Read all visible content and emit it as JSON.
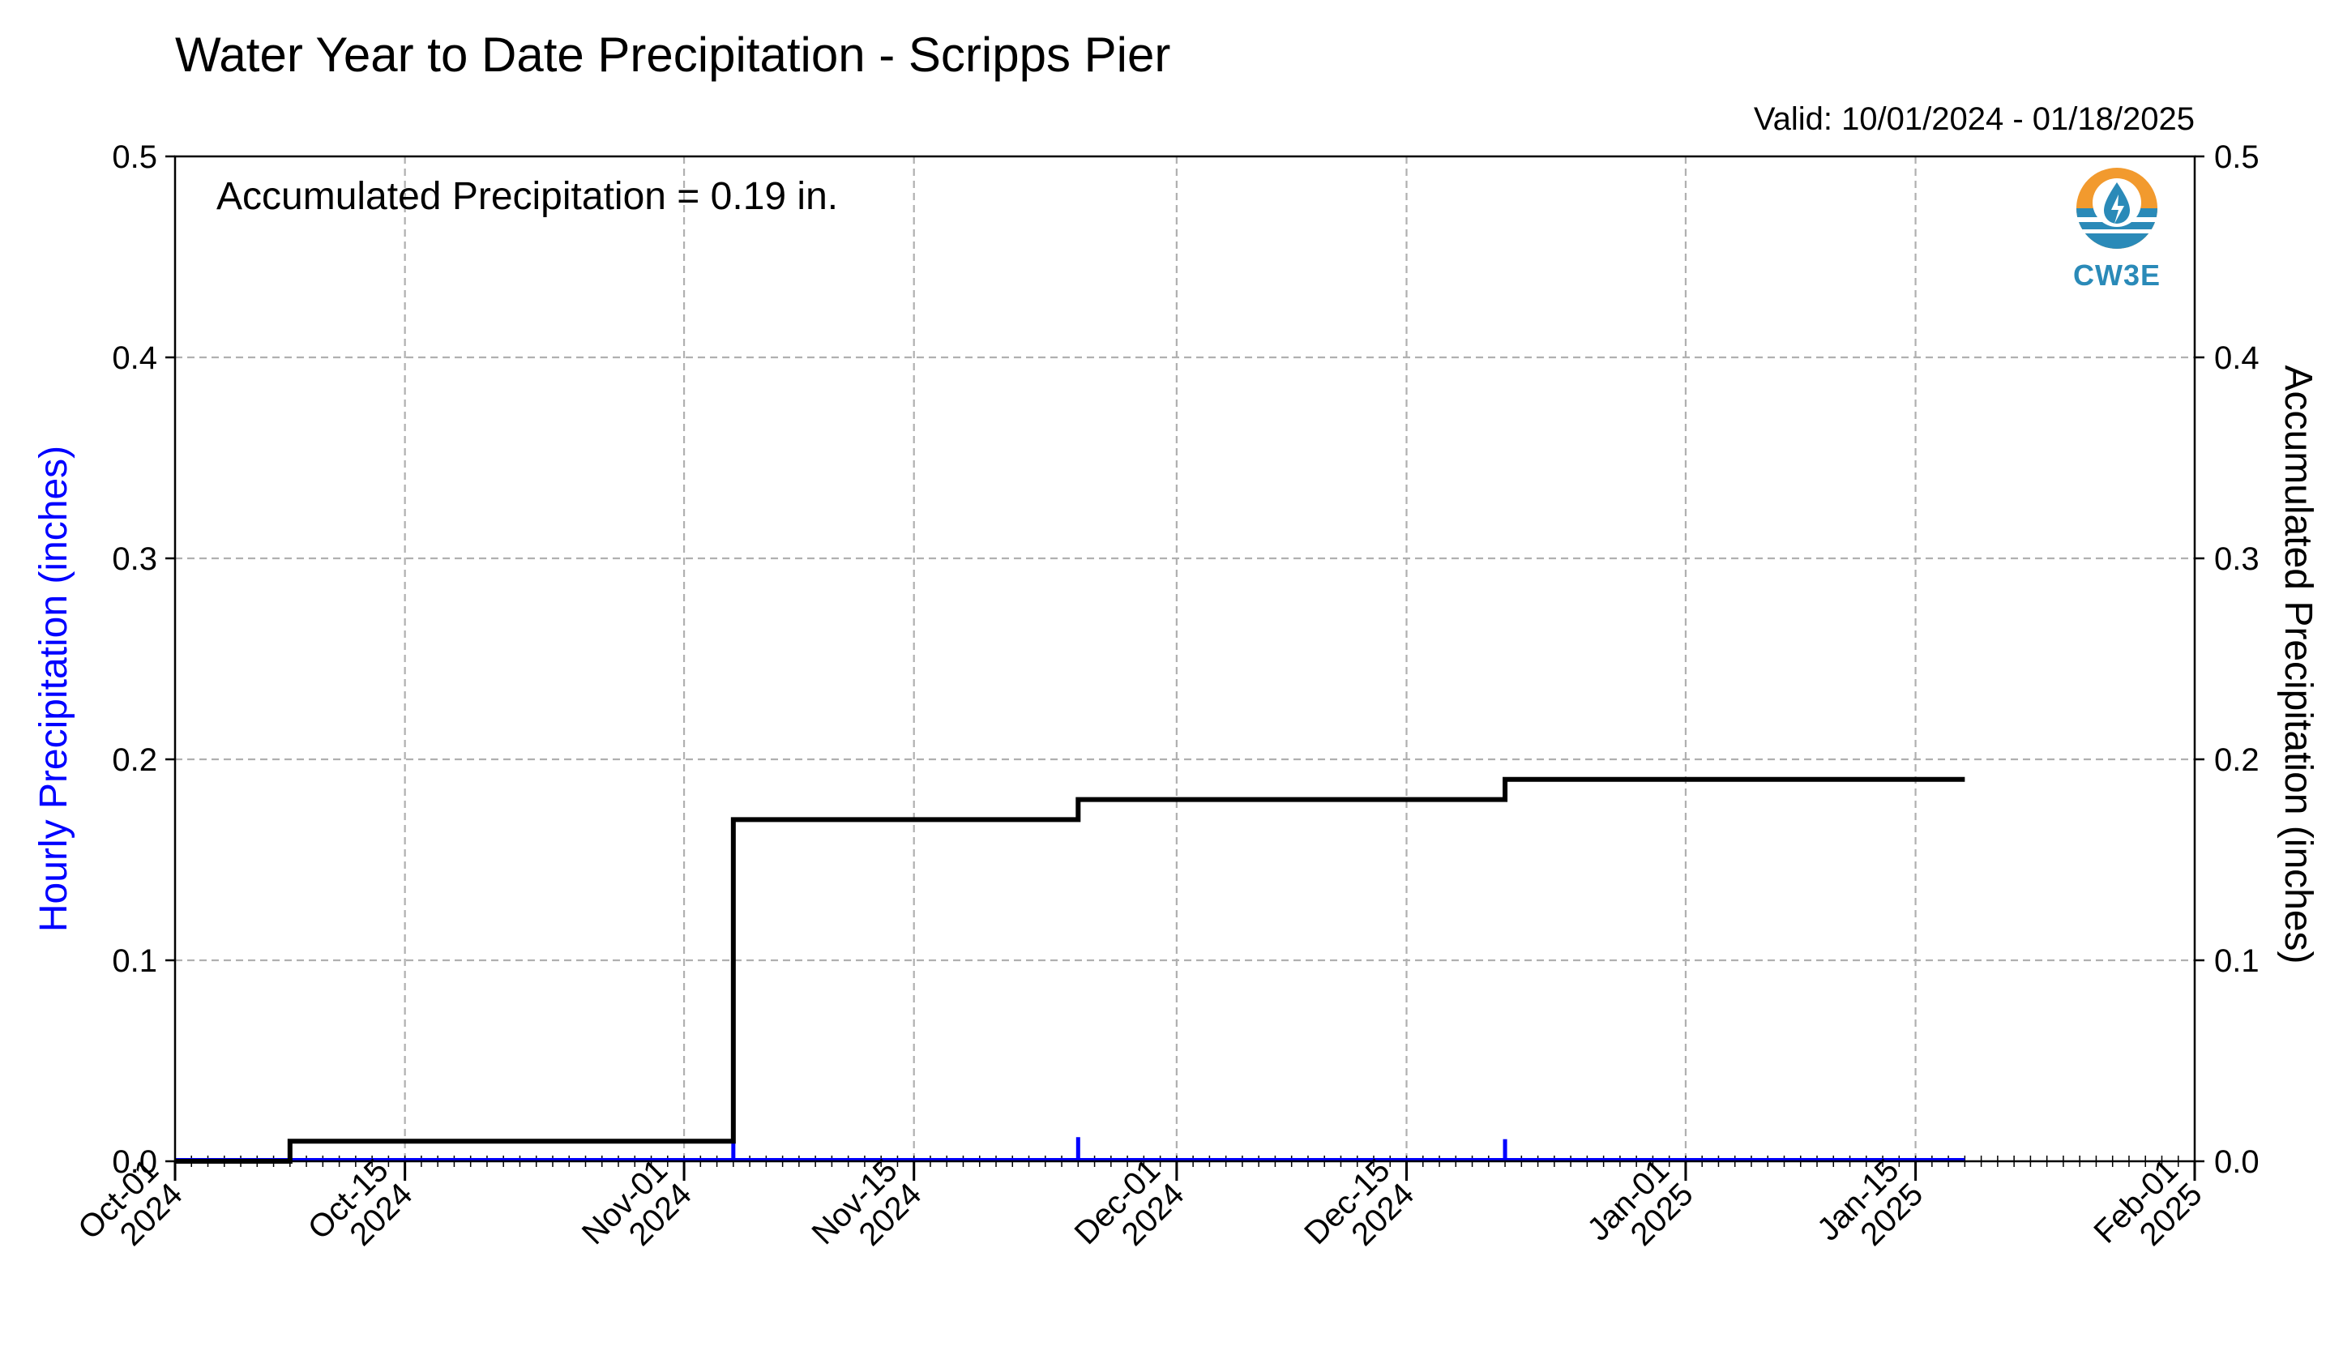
{
  "title": "Water Year to Date Precipitation - Scripps Pier",
  "valid_text": "Valid: 10/01/2024 - 01/18/2025",
  "annotation": "Accumulated Precipitation = 0.19 in.",
  "logo": {
    "text": "CW3E",
    "icon": "cw3e-water-drop-logo-icon"
  },
  "colors": {
    "hourly": "#0000ff",
    "accumulated": "#000000",
    "grid": "#b0b0b0",
    "logo_orange": "#f29a2e",
    "logo_blue": "#2a8ab8"
  },
  "chart_data": {
    "type": "line",
    "title": "Water Year to Date Precipitation - Scripps Pier",
    "ylabel_left": "Hourly Precipitation (inches)",
    "ylabel_right": "Accumulated Precipitation (inches)",
    "xlim": [
      "2024-10-01",
      "2025-02-01"
    ],
    "ylim": [
      0,
      0.5
    ],
    "y_ticks": [
      "0.0",
      "0.1",
      "0.2",
      "0.3",
      "0.4",
      "0.5"
    ],
    "y_tick_values": [
      0,
      0.1,
      0.2,
      0.3,
      0.4,
      0.5
    ],
    "x_ticks": [
      {
        "date": "2024-10-01",
        "line1": "Oct-01",
        "line2": "2024"
      },
      {
        "date": "2024-10-15",
        "line1": "Oct-15",
        "line2": "2024"
      },
      {
        "date": "2024-11-01",
        "line1": "Nov-01",
        "line2": "2024"
      },
      {
        "date": "2024-11-15",
        "line1": "Nov-15",
        "line2": "2024"
      },
      {
        "date": "2024-12-01",
        "line1": "Dec-01",
        "line2": "2024"
      },
      {
        "date": "2024-12-15",
        "line1": "Dec-15",
        "line2": "2024"
      },
      {
        "date": "2025-01-01",
        "line1": "Jan-01",
        "line2": "2025"
      },
      {
        "date": "2025-01-15",
        "line1": "Jan-15",
        "line2": "2025"
      },
      {
        "date": "2025-02-01",
        "line1": "Feb-01",
        "line2": "2025"
      }
    ],
    "grid": true,
    "series": [
      {
        "name": "Accumulated Precipitation (inches)",
        "style": "step",
        "color": "#000000",
        "points": [
          {
            "x": "2024-10-01",
            "y": 0.0
          },
          {
            "x": "2024-10-08",
            "y": 0.01
          },
          {
            "x": "2024-11-04",
            "y": 0.17
          },
          {
            "x": "2024-11-25",
            "y": 0.18
          },
          {
            "x": "2024-12-21",
            "y": 0.19
          },
          {
            "x": "2025-01-18",
            "y": 0.19
          }
        ]
      },
      {
        "name": "Hourly Precipitation (inches)",
        "style": "bars",
        "color": "#0000ff",
        "points": [
          {
            "x": "2024-11-04",
            "y": 0.01
          },
          {
            "x": "2024-11-25",
            "y": 0.012
          },
          {
            "x": "2024-12-21",
            "y": 0.011
          }
        ],
        "baseline_end": "2025-01-18"
      }
    ]
  }
}
